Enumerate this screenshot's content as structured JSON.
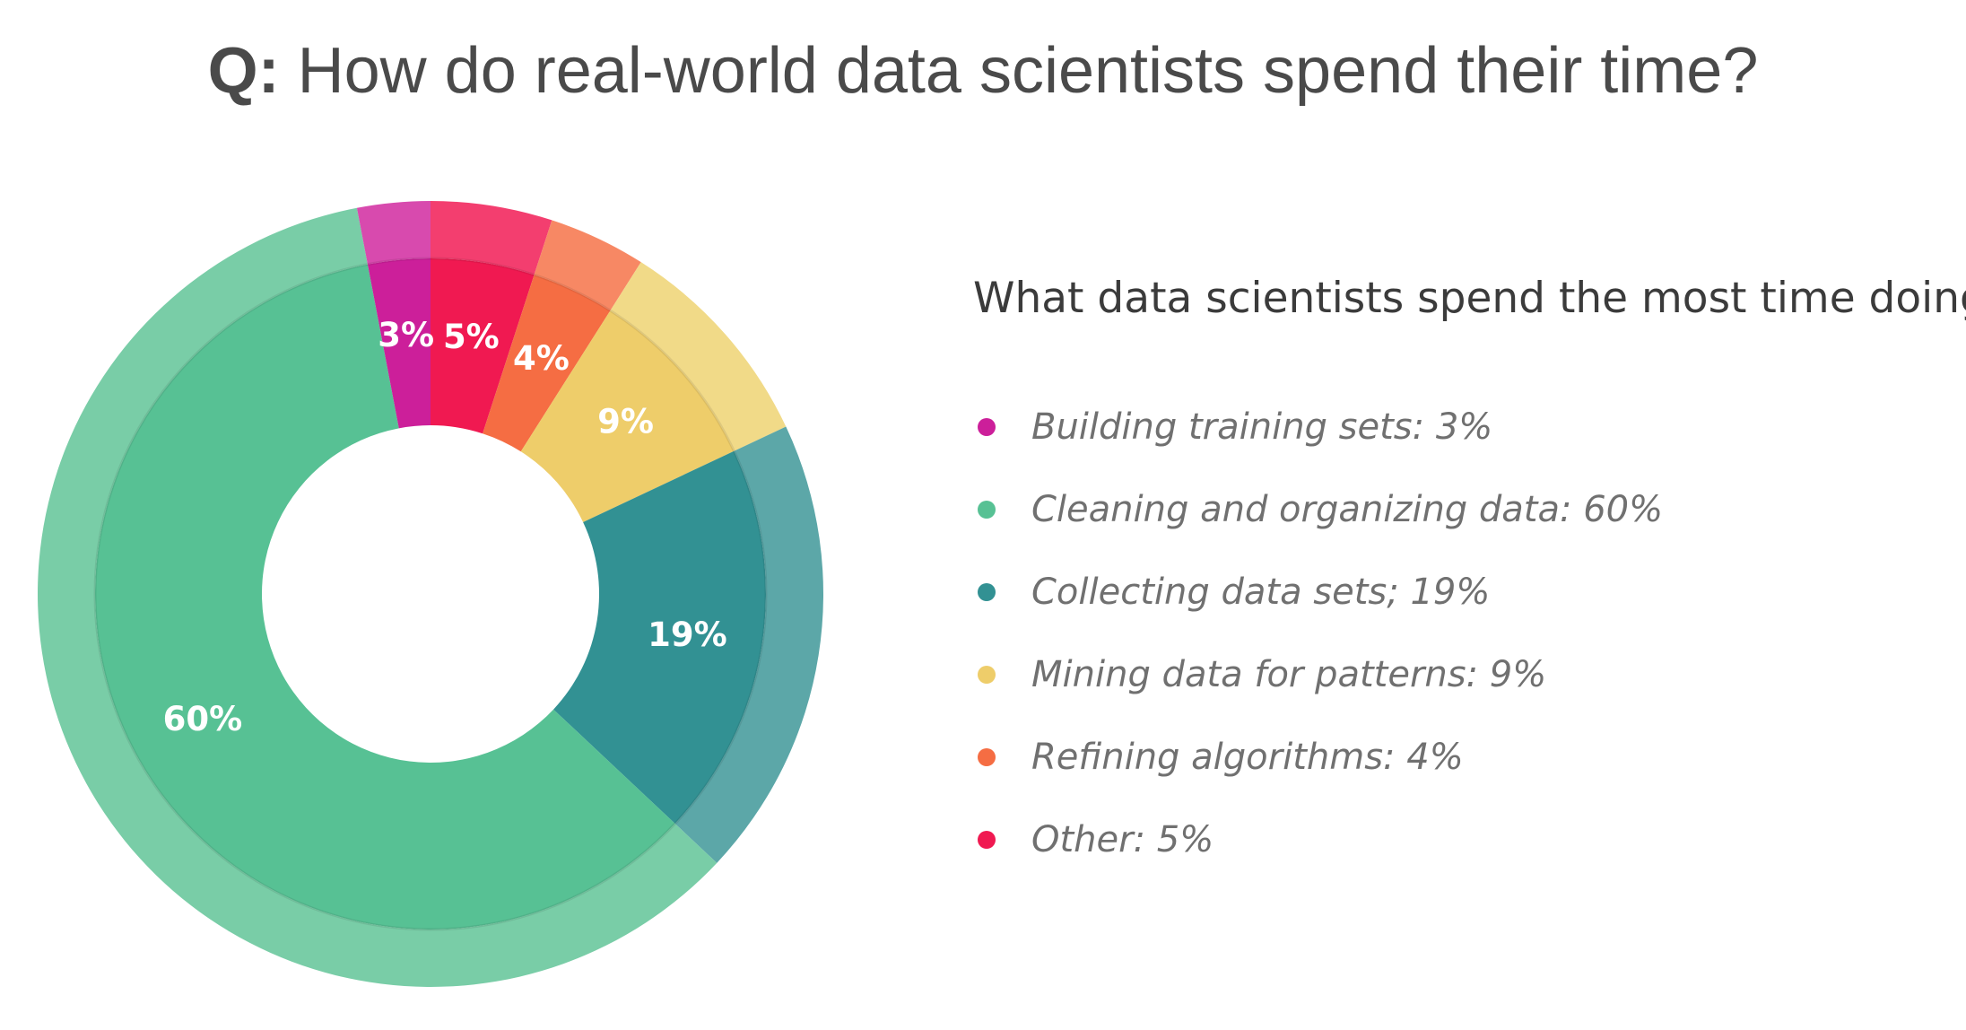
{
  "title": {
    "prefix": "Q:",
    "text": "How do real-world data scientists spend their time?"
  },
  "chart_data": {
    "type": "pie",
    "variant": "donut",
    "title": "How do real-world data scientists spend their time?",
    "legend_title": "What data scientists spend the most time doing",
    "legend_position": "right",
    "slices": [
      {
        "name": "Other",
        "value": 5,
        "label": "5%",
        "legend": "Other: 5%",
        "color": "#f01951",
        "outer_color": "#f33e6f"
      },
      {
        "name": "Refining algorithms",
        "value": 4,
        "label": "4%",
        "legend": "Refining algorithms: 4%",
        "color": "#f56d43",
        "outer_color": "#f78864"
      },
      {
        "name": "Mining data for patterns",
        "value": 9,
        "label": "9%",
        "legend": "Mining data for patterns: 9%",
        "color": "#eecd6a",
        "outer_color": "#f1da88"
      },
      {
        "name": "Collecting data sets",
        "value": 19,
        "label": "19%",
        "legend": "Collecting data sets; 19%",
        "color": "#329193",
        "outer_color": "#5ca7a8"
      },
      {
        "name": "Cleaning and organizing data",
        "value": 60,
        "label": "60%",
        "legend": "Cleaning and organizing data: 60%",
        "color": "#57c194",
        "outer_color": "#79cda7"
      },
      {
        "name": "Building training sets",
        "value": 3,
        "label": "3%",
        "legend": "Building training sets: 3%",
        "color": "#cc1f9a",
        "outer_color": "#d84aae"
      }
    ],
    "legend_order": [
      "Building training sets",
      "Cleaning and organizing data",
      "Collecting data sets",
      "Mining data for patterns",
      "Refining algorithms",
      "Other"
    ]
  }
}
